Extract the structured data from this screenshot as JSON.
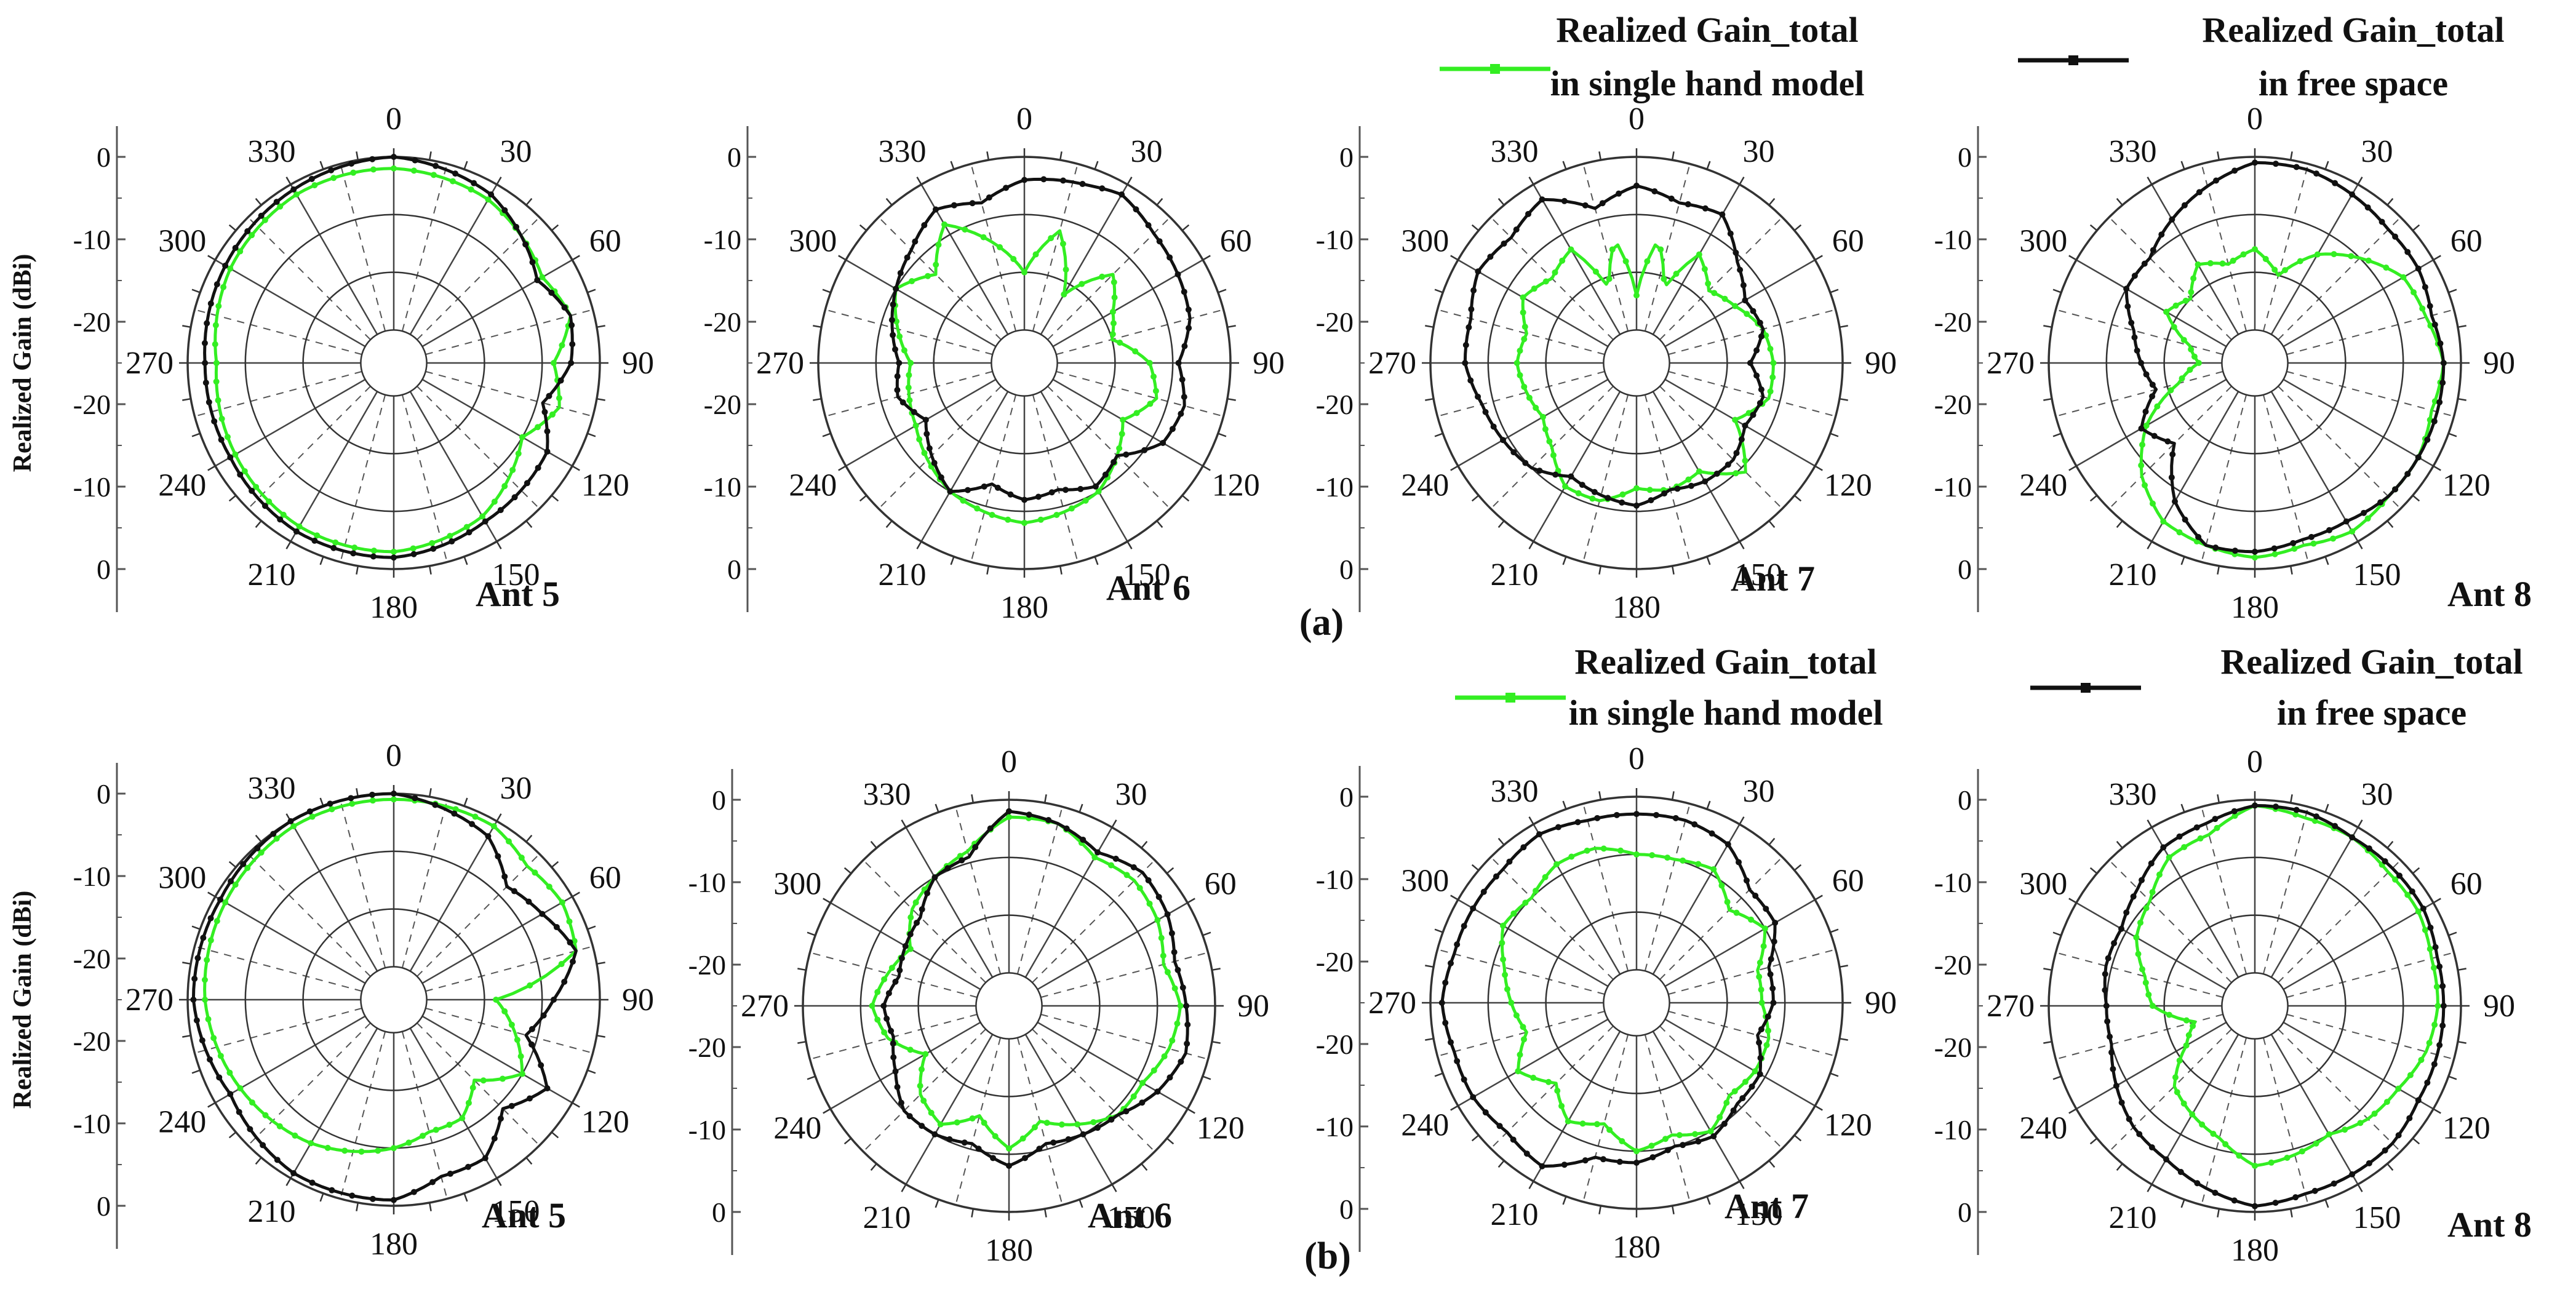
{
  "figure": {
    "panel_labels": [
      "(a)",
      "(b)"
    ]
  },
  "legend": {
    "single_hand": {
      "line1": "Realized Gain_total",
      "line2": "in single hand model",
      "color": "#33ee22"
    },
    "free_space": {
      "line1": "Realized Gain_total",
      "line2": "in free space",
      "color": "#111111"
    }
  },
  "chart_data": [
    {
      "type": "polar-line",
      "panel": "(a)",
      "title": "Ant 5",
      "ylabel": "Realized Gain (dBi)",
      "angle_labels": [
        "0",
        "30",
        "60",
        "90",
        "120",
        "150",
        "180",
        "210",
        "240",
        "270",
        "300",
        "330"
      ],
      "radial_ticks": [
        "0",
        "-10",
        "-20",
        "-20",
        "-10",
        "0"
      ],
      "rlim": [
        -30,
        0
      ],
      "series": [
        {
          "name": "Realized Gain_total in single hand model",
          "color": "#33ee22",
          "angles": [
            0,
            30,
            60,
            75,
            90,
            105,
            120,
            150,
            180,
            210,
            240,
            270,
            300,
            330
          ],
          "values": [
            -2,
            -3,
            -6,
            -4,
            -8,
            -6,
            -10,
            -5,
            -3,
            -3,
            -4,
            -5,
            -3,
            -2
          ]
        },
        {
          "name": "Realized Gain_total in free space",
          "color": "#111111",
          "angles": [
            0,
            30,
            60,
            75,
            90,
            105,
            120,
            150,
            180,
            210,
            240,
            270,
            300,
            330
          ],
          "values": [
            0,
            -2,
            -7,
            -4,
            -5,
            -9,
            -5,
            -4,
            -2,
            -2,
            -3,
            -3,
            -2,
            -1
          ]
        }
      ]
    },
    {
      "type": "polar-line",
      "panel": "(a)",
      "title": "Ant 6",
      "ylabel": "",
      "angle_labels": [
        "0",
        "30",
        "60",
        "90",
        "120",
        "150",
        "180",
        "210",
        "240",
        "270",
        "300",
        "330"
      ],
      "radial_ticks": [
        "0",
        "-10",
        "-20",
        "-20",
        "-10",
        "0"
      ],
      "rlim": [
        -30,
        0
      ],
      "series": [
        {
          "name": "Realized Gain_total in single hand model",
          "color": "#33ee22",
          "angles": [
            0,
            15,
            30,
            45,
            60,
            75,
            90,
            105,
            120,
            150,
            180,
            210,
            240,
            270,
            300,
            315,
            330,
            345
          ],
          "values": [
            -20,
            -12,
            -22,
            -14,
            -18,
            -20,
            -14,
            -12,
            -16,
            -10,
            -8,
            -10,
            -14,
            -16,
            -10,
            -14,
            -8,
            -14
          ]
        },
        {
          "name": "Realized Gain_total in free space",
          "color": "#111111",
          "angles": [
            0,
            20,
            30,
            45,
            60,
            75,
            90,
            105,
            120,
            135,
            150,
            165,
            180,
            195,
            210,
            225,
            240,
            255,
            270,
            285,
            300,
            315,
            330,
            345
          ],
          "values": [
            -4,
            -3,
            -2,
            -4,
            -5,
            -6,
            -9,
            -7,
            -8,
            -13,
            -11,
            -13,
            -12,
            -14,
            -10,
            -13,
            -16,
            -13,
            -14,
            -12,
            -10,
            -8,
            -5,
            -7
          ]
        }
      ]
    },
    {
      "type": "polar-line",
      "panel": "(a)",
      "title": "Ant 7",
      "ylabel": "",
      "angle_labels": [
        "0",
        "30",
        "60",
        "90",
        "120",
        "150",
        "180",
        "210",
        "240",
        "270",
        "300",
        "330"
      ],
      "radial_ticks": [
        "0",
        "-10",
        "-20",
        "-20",
        "-10",
        "0"
      ],
      "rlim": [
        -30,
        0
      ],
      "series": [
        {
          "name": "Realized Gain_total in single hand model",
          "color": "#33ee22",
          "angles": [
            0,
            10,
            20,
            30,
            45,
            60,
            75,
            90,
            105,
            120,
            135,
            150,
            165,
            180,
            195,
            210,
            225,
            240,
            255,
            270,
            285,
            300,
            315,
            330,
            340,
            350
          ],
          "values": [
            -24,
            -14,
            -22,
            -14,
            -18,
            -16,
            -13,
            -12,
            -12,
            -16,
            -9,
            -14,
            -13,
            -14,
            -11,
            -11,
            -15,
            -17,
            -16,
            -15,
            -16,
            -13,
            -15,
            -13,
            -22,
            -14
          ]
        },
        {
          "name": "Realized Gain_total in free space",
          "color": "#111111",
          "angles": [
            0,
            15,
            30,
            45,
            60,
            75,
            90,
            105,
            120,
            135,
            150,
            165,
            180,
            195,
            210,
            225,
            240,
            255,
            270,
            285,
            300,
            315,
            330,
            345
          ],
          "values": [
            -5,
            -7,
            -6,
            -11,
            -14,
            -13,
            -16,
            -13,
            -14,
            -12,
            -12,
            -13,
            -11,
            -12,
            -13,
            -10,
            -9,
            -8,
            -6,
            -6,
            -4,
            -5,
            -3,
            -8
          ]
        }
      ]
    },
    {
      "type": "polar-line",
      "panel": "(a)",
      "title": "Ant 8",
      "ylabel": "",
      "angle_labels": [
        "0",
        "30",
        "60",
        "90",
        "120",
        "150",
        "180",
        "210",
        "240",
        "270",
        "300",
        "330"
      ],
      "radial_ticks": [
        "0",
        "-10",
        "-20",
        "-20",
        "-10",
        "0"
      ],
      "rlim": [
        -30,
        0
      ],
      "series": [
        {
          "name": "Realized Gain_total in single hand model",
          "color": "#33ee22",
          "angles": [
            0,
            15,
            30,
            45,
            60,
            75,
            90,
            105,
            120,
            135,
            150,
            165,
            180,
            195,
            210,
            225,
            240,
            255,
            270,
            285,
            300,
            315,
            330,
            345
          ],
          "values": [
            -16,
            -20,
            -14,
            -10,
            -6,
            -5,
            -3,
            -4,
            -3,
            -3,
            -2,
            -3,
            -2,
            -3,
            -4,
            -8,
            -14,
            -22,
            -26,
            -24,
            -18,
            -20,
            -16,
            -18
          ]
        },
        {
          "name": "Realized Gain_total in free space",
          "color": "#111111",
          "angles": [
            0,
            15,
            30,
            45,
            60,
            75,
            90,
            105,
            120,
            135,
            150,
            165,
            180,
            195,
            210,
            225,
            240,
            255,
            270,
            285,
            300,
            315,
            330,
            345
          ],
          "values": [
            -1,
            -1,
            -2,
            -3,
            -3,
            -4,
            -3,
            -3,
            -3,
            -3,
            -4,
            -4,
            -3,
            -3,
            -8,
            -16,
            -13,
            -18,
            -16,
            -14,
            -10,
            -10,
            -7,
            -4
          ]
        }
      ]
    },
    {
      "type": "polar-line",
      "panel": "(b)",
      "title": "Ant 5",
      "ylabel": "Realized Gain (dBi)",
      "angle_labels": [
        "0",
        "30",
        "60",
        "90",
        "120",
        "150",
        "180",
        "210",
        "240",
        "270",
        "300",
        "330"
      ],
      "radial_ticks": [
        "0",
        "-10",
        "-20",
        "-20",
        "-10",
        "0"
      ],
      "rlim": [
        -30,
        0
      ],
      "series": [
        {
          "name": "Realized Gain_total in single hand model",
          "color": "#33ee22",
          "angles": [
            0,
            30,
            45,
            60,
            75,
            90,
            105,
            120,
            135,
            150,
            165,
            180,
            210,
            240,
            270,
            300,
            330
          ],
          "values": [
            -1,
            -1,
            -3,
            -2,
            -3,
            -18,
            -14,
            -10,
            -16,
            -12,
            -12,
            -10,
            -7,
            -5,
            -3,
            -2,
            -1
          ]
        },
        {
          "name": "Realized Gain_total in free space",
          "color": "#111111",
          "angles": [
            0,
            30,
            45,
            60,
            75,
            90,
            105,
            120,
            135,
            150,
            165,
            180,
            210,
            240,
            270,
            300,
            330
          ],
          "values": [
            0,
            -3,
            -8,
            -6,
            -3,
            -8,
            -12,
            -5,
            -9,
            -4,
            -4,
            -1,
            -1,
            -3,
            -1,
            -1,
            0
          ]
        }
      ]
    },
    {
      "type": "polar-line",
      "panel": "(b)",
      "title": "Ant 6",
      "ylabel": "",
      "angle_labels": [
        "0",
        "30",
        "60",
        "90",
        "120",
        "150",
        "180",
        "210",
        "240",
        "270",
        "300",
        "330"
      ],
      "radial_ticks": [
        "0",
        "-10",
        "-20",
        "-20",
        "-10",
        "0"
      ],
      "rlim": [
        -30,
        0
      ],
      "series": [
        {
          "name": "Realized Gain_total in single hand model",
          "color": "#33ee22",
          "angles": [
            0,
            15,
            30,
            45,
            60,
            75,
            90,
            105,
            120,
            135,
            150,
            165,
            180,
            195,
            210,
            225,
            240,
            255,
            270,
            285,
            300,
            315,
            330,
            345
          ],
          "values": [
            -3,
            -3,
            -6,
            -5,
            -6,
            -8,
            -6,
            -7,
            -9,
            -9,
            -12,
            -15,
            -11,
            -16,
            -12,
            -14,
            -19,
            -14,
            -12,
            -14,
            -16,
            -12,
            -10,
            -8
          ]
        },
        {
          "name": "Realized Gain_total in free space",
          "color": "#111111",
          "angles": [
            0,
            15,
            30,
            45,
            60,
            75,
            90,
            105,
            120,
            135,
            150,
            165,
            180,
            195,
            210,
            225,
            240,
            255,
            270,
            285,
            300,
            315,
            330,
            345
          ],
          "values": [
            -2,
            -3,
            -5,
            -3,
            -4,
            -6,
            -5,
            -4,
            -6,
            -9,
            -10,
            -11,
            -8,
            -11,
            -10,
            -10,
            -13,
            -15,
            -14,
            -16,
            -15,
            -14,
            -10,
            -9
          ]
        }
      ]
    },
    {
      "type": "polar-line",
      "panel": "(b)",
      "title": "Ant 7",
      "ylabel": "",
      "angle_labels": [
        "0",
        "30",
        "60",
        "90",
        "120",
        "150",
        "180",
        "210",
        "240",
        "270",
        "300",
        "330"
      ],
      "radial_ticks": [
        "0",
        "-10",
        "-20",
        "-20",
        "-10",
        "0"
      ],
      "rlim": [
        -30,
        0
      ],
      "series": [
        {
          "name": "Realized Gain_total in single hand model",
          "color": "#33ee22",
          "angles": [
            0,
            15,
            30,
            45,
            60,
            75,
            90,
            105,
            120,
            135,
            150,
            165,
            180,
            195,
            210,
            225,
            240,
            255,
            270,
            285,
            300,
            315,
            330,
            345
          ],
          "values": [
            -10,
            -10,
            -9,
            -13,
            -10,
            -14,
            -14,
            -12,
            -12,
            -13,
            -10,
            -12,
            -10,
            -14,
            -12,
            -16,
            -12,
            -16,
            -14,
            -12,
            -9,
            -10,
            -8,
            -8
          ]
        },
        {
          "name": "Realized Gain_total in free space",
          "color": "#111111",
          "angles": [
            0,
            15,
            30,
            45,
            60,
            75,
            90,
            105,
            120,
            135,
            150,
            165,
            180,
            195,
            210,
            225,
            240,
            255,
            270,
            285,
            300,
            315,
            330,
            345
          ],
          "values": [
            -3,
            -3,
            -4,
            -8,
            -8,
            -12,
            -12,
            -14,
            -11,
            -11,
            -9,
            -10,
            -8,
            -8,
            -3,
            -4,
            -3,
            -3,
            -2,
            -3,
            -3,
            -3,
            -2,
            -3
          ]
        }
      ]
    },
    {
      "type": "polar-line",
      "panel": "(b)",
      "title": "Ant 8",
      "ylabel": "",
      "angle_labels": [
        "0",
        "30",
        "60",
        "90",
        "120",
        "150",
        "180",
        "210",
        "240",
        "270",
        "300",
        "330"
      ],
      "radial_ticks": [
        "0",
        "-10",
        "-20",
        "-20",
        "-10",
        "0"
      ],
      "rlim": [
        -30,
        0
      ],
      "series": [
        {
          "name": "Realized Gain_total in single hand model",
          "color": "#33ee22",
          "angles": [
            0,
            15,
            30,
            45,
            60,
            75,
            90,
            105,
            120,
            135,
            150,
            165,
            180,
            195,
            210,
            225,
            240,
            255,
            270,
            285,
            300,
            315,
            330,
            345
          ],
          "values": [
            -1,
            -2,
            -2,
            -3,
            -3,
            -4,
            -4,
            -5,
            -7,
            -8,
            -10,
            -9,
            -8,
            -12,
            -14,
            -16,
            -22,
            -25,
            -18,
            -16,
            -12,
            -10,
            -6,
            -5
          ]
        },
        {
          "name": "Realized Gain_total in free space",
          "color": "#111111",
          "angles": [
            0,
            15,
            30,
            45,
            60,
            75,
            90,
            105,
            120,
            135,
            150,
            165,
            180,
            195,
            210,
            225,
            240,
            255,
            270,
            285,
            300,
            315,
            330,
            345
          ],
          "values": [
            -1,
            -1,
            -2,
            -2,
            -2,
            -3,
            -3,
            -3,
            -3,
            -2,
            -2,
            -2,
            -1,
            -3,
            -5,
            -6,
            -8,
            -10,
            -10,
            -9,
            -9,
            -7,
            -4,
            -3
          ]
        }
      ]
    }
  ]
}
